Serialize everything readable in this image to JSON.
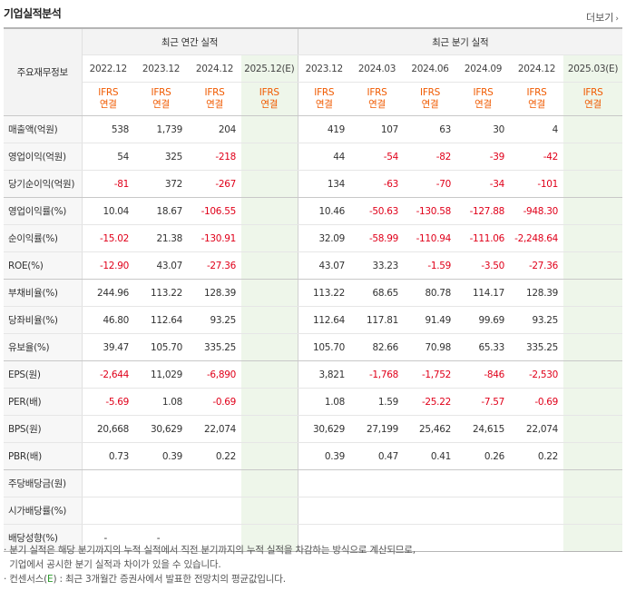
{
  "title": "기업실적분석",
  "more_label": "더보기",
  "header": {
    "item_col": "주요재무정보",
    "annual_group": "최근 연간 실적",
    "quarter_group": "최근 분기 실적",
    "annual_periods": [
      "2022.12",
      "2023.12",
      "2024.12",
      "2025.12(E)"
    ],
    "quarter_periods": [
      "2023.12",
      "2024.03",
      "2024.06",
      "2024.09",
      "2024.12",
      "2025.03(E)"
    ],
    "ifrs": "IFRS",
    "consolidated": "연결"
  },
  "rows": [
    {
      "label": "매출액(억원)",
      "values": [
        "538",
        "1,739",
        "204",
        "",
        "419",
        "107",
        "63",
        "30",
        "4",
        ""
      ]
    },
    {
      "label": "영업이익(억원)",
      "values": [
        "54",
        "325",
        "-218",
        "",
        "44",
        "-54",
        "-82",
        "-39",
        "-42",
        ""
      ]
    },
    {
      "label": "당기순이익(억원)",
      "values": [
        "-81",
        "372",
        "-267",
        "",
        "134",
        "-63",
        "-70",
        "-34",
        "-101",
        ""
      ]
    },
    {
      "label": "영업이익률(%)",
      "values": [
        "10.04",
        "18.67",
        "-106.55",
        "",
        "10.46",
        "-50.63",
        "-130.58",
        "-127.88",
        "-948.30",
        ""
      ]
    },
    {
      "label": "순이익률(%)",
      "values": [
        "-15.02",
        "21.38",
        "-130.91",
        "",
        "32.09",
        "-58.99",
        "-110.94",
        "-111.06",
        "-2,248.64",
        ""
      ]
    },
    {
      "label": "ROE(%)",
      "values": [
        "-12.90",
        "43.07",
        "-27.36",
        "",
        "43.07",
        "33.23",
        "-1.59",
        "-3.50",
        "-27.36",
        ""
      ]
    },
    {
      "label": "부채비율(%)",
      "values": [
        "244.96",
        "113.22",
        "128.39",
        "",
        "113.22",
        "68.65",
        "80.78",
        "114.17",
        "128.39",
        ""
      ]
    },
    {
      "label": "당좌비율(%)",
      "values": [
        "46.80",
        "112.64",
        "93.25",
        "",
        "112.64",
        "117.81",
        "91.49",
        "99.69",
        "93.25",
        ""
      ]
    },
    {
      "label": "유보율(%)",
      "values": [
        "39.47",
        "105.70",
        "335.25",
        "",
        "105.70",
        "82.66",
        "70.98",
        "65.33",
        "335.25",
        ""
      ]
    },
    {
      "label": "EPS(원)",
      "values": [
        "-2,644",
        "11,029",
        "-6,890",
        "",
        "3,821",
        "-1,768",
        "-1,752",
        "-846",
        "-2,530",
        ""
      ]
    },
    {
      "label": "PER(배)",
      "values": [
        "-5.69",
        "1.08",
        "-0.69",
        "",
        "1.08",
        "1.59",
        "-25.22",
        "-7.57",
        "-0.69",
        ""
      ]
    },
    {
      "label": "BPS(원)",
      "values": [
        "20,668",
        "30,629",
        "22,074",
        "",
        "30,629",
        "27,199",
        "25,462",
        "24,615",
        "22,074",
        ""
      ]
    },
    {
      "label": "PBR(배)",
      "values": [
        "0.73",
        "0.39",
        "0.22",
        "",
        "0.39",
        "0.47",
        "0.41",
        "0.26",
        "0.22",
        ""
      ]
    },
    {
      "label": "주당배당금(원)",
      "values": [
        "",
        "",
        "",
        "",
        "",
        "",
        "",
        "",
        "",
        ""
      ]
    },
    {
      "label": "시가배당률(%)",
      "values": [
        "",
        "",
        "",
        "",
        "",
        "",
        "",
        "",
        "",
        ""
      ]
    },
    {
      "label": "배당성향(%)",
      "values": [
        "-",
        "-",
        "",
        "",
        "",
        "",
        "",
        "",
        "",
        ""
      ]
    }
  ],
  "notes": [
    "· 분기 실적은 해당 분기까지의 누적 실적에서 직전 분기까지의 누적 실적을 차감하는 방식으로 계산되므로,",
    "  기업에서 공시한 분기 실적과 차이가 있을 수 있습니다.",
    "· 컨센서스(E) : 최근 3개월간 증권사에서 발표한 전망치의 평균값입니다."
  ],
  "colors": {
    "negative": "#e0001a",
    "ifrs": "#f05a00",
    "estimate_bg": "#eef6ea"
  }
}
